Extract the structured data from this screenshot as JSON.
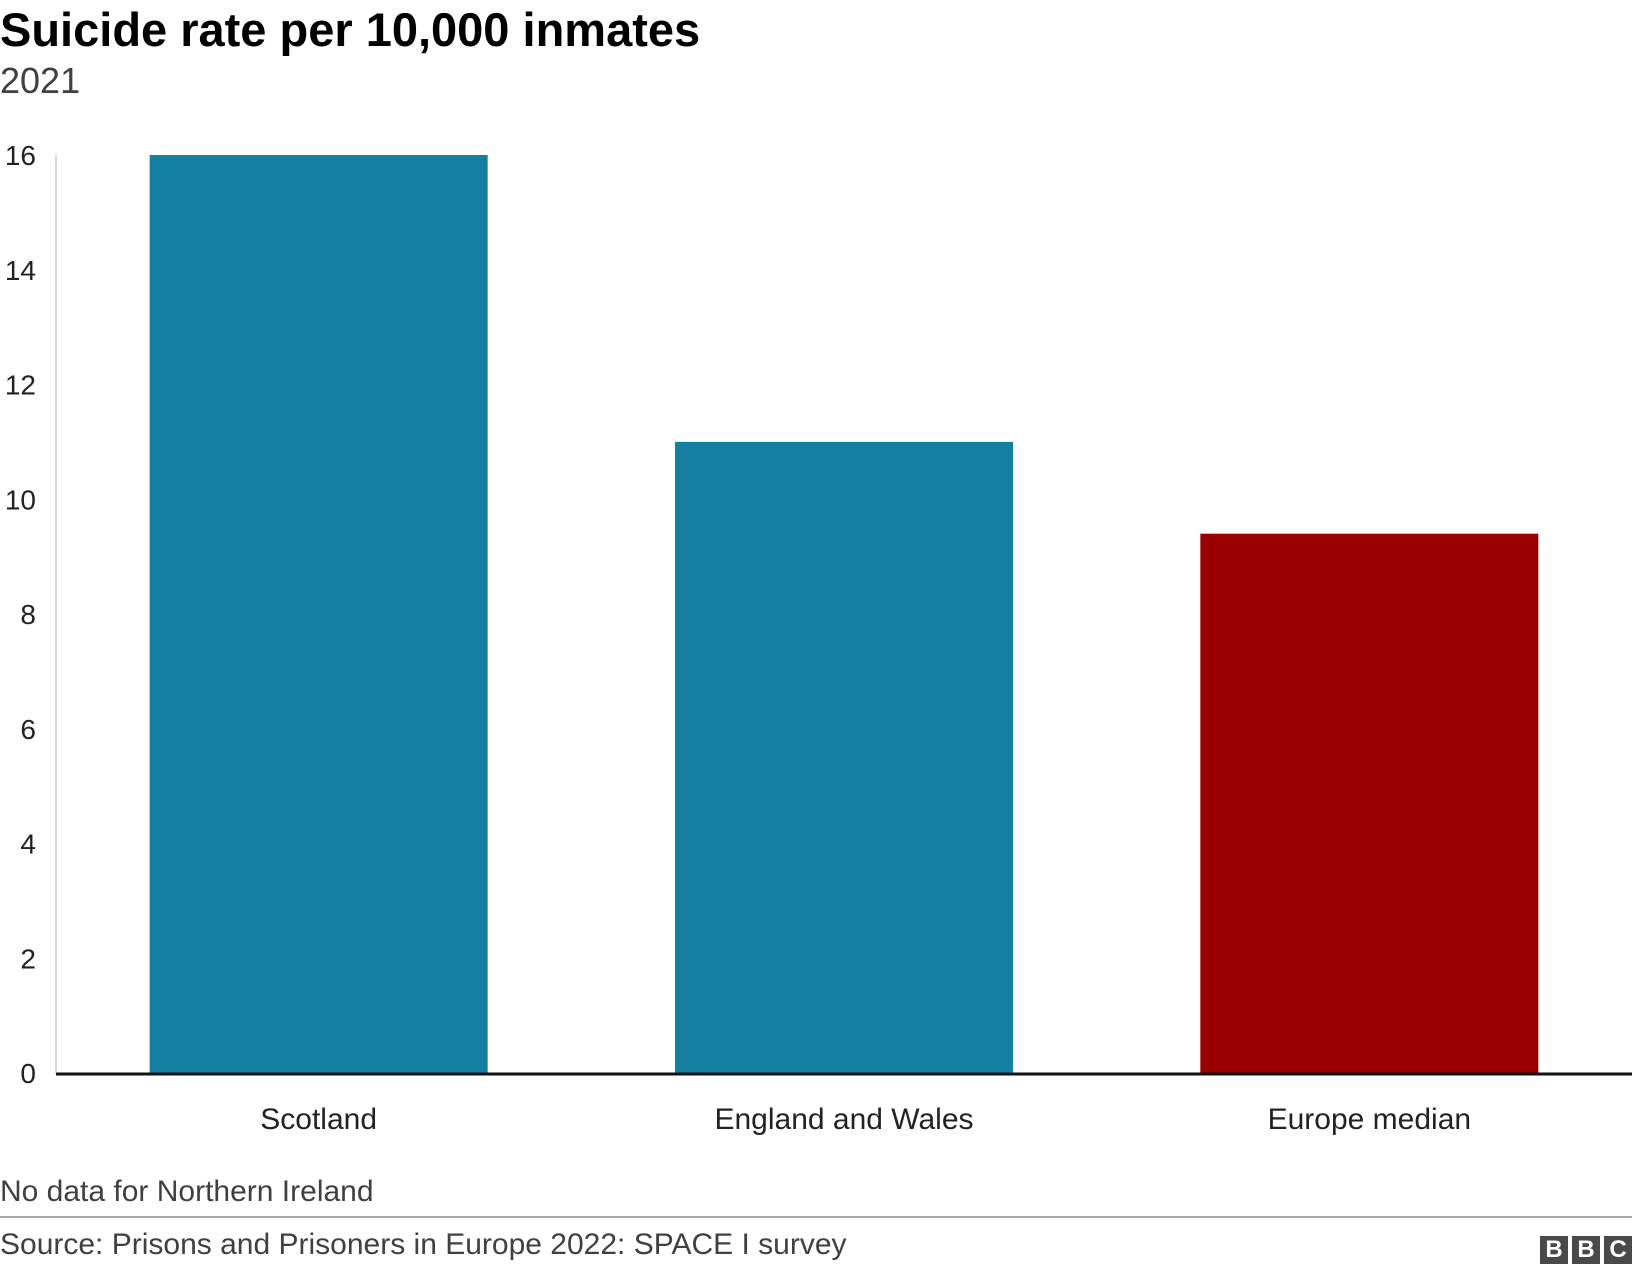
{
  "chart_data": {
    "type": "bar",
    "title": "Suicide rate per 10,000 inmates",
    "subtitle": "2021",
    "categories": [
      "Scotland",
      "England and Wales",
      "Europe median"
    ],
    "values": [
      16,
      11,
      9.4
    ],
    "colors": [
      "#1380A1",
      "#1380A1",
      "#990000"
    ],
    "ylim": [
      0,
      16
    ],
    "yticks": [
      0,
      2,
      4,
      6,
      8,
      10,
      12,
      14,
      16
    ],
    "grid": false,
    "note": "No data for Northern Ireland",
    "source": "Source: Prisons and Prisoners in Europe 2022: SPACE I survey"
  },
  "branding": {
    "logo_letters": [
      "B",
      "B",
      "C"
    ],
    "logo_label": "BBC"
  }
}
